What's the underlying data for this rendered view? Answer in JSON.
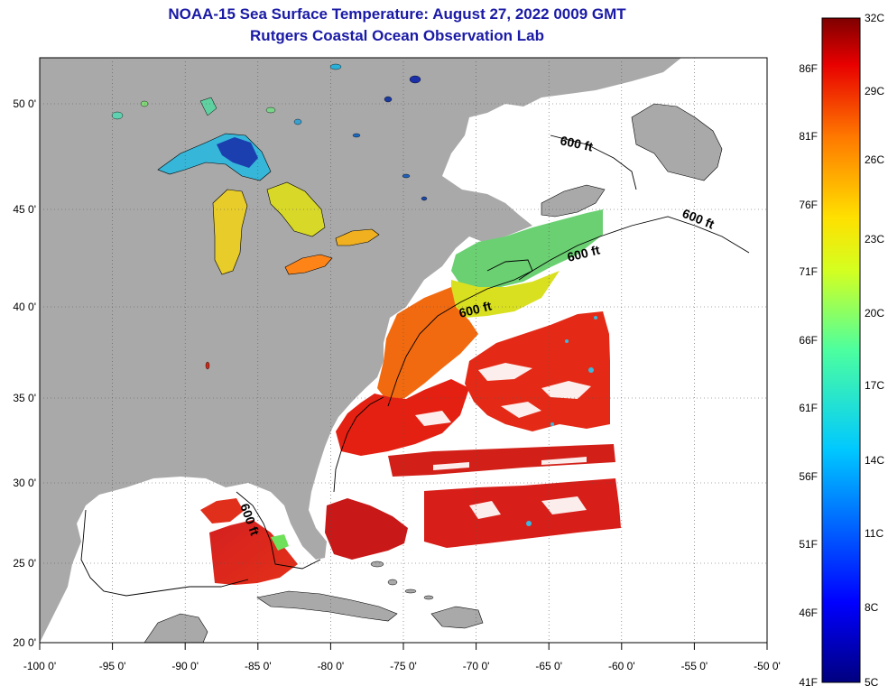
{
  "title": "NOAA-15 Sea Surface Temperature:  August 27, 2022 0009 GMT",
  "subtitle": "Rutgers Coastal Ocean Observation Lab",
  "lon_labels": [
    "-100 0'",
    "-95 0'",
    "-90 0'",
    "-85 0'",
    "-80 0'",
    "-75 0'",
    "-70 0'",
    "-65 0'",
    "-60 0'",
    "-55 0'",
    "-50 0'"
  ],
  "lat_labels": [
    "50 0'",
    "45 0'",
    "40 0'",
    "35 0'",
    "30 0'",
    "25 0'",
    "20 0'"
  ],
  "contour_label": "600 ft",
  "colorbar": {
    "celsius": [
      "32C",
      "29C",
      "26C",
      "23C",
      "20C",
      "17C",
      "14C",
      "11C",
      "8C",
      "5C"
    ],
    "fahrenheit": [
      "86F",
      "81F",
      "76F",
      "71F",
      "66F",
      "61F",
      "56F",
      "51F",
      "46F",
      "41F"
    ]
  },
  "colors": {
    "land": "#a9a9a9",
    "no_data": "#ffffff",
    "title": "#1a1aa6",
    "warm": "#d21010",
    "cold": "#00007a"
  }
}
